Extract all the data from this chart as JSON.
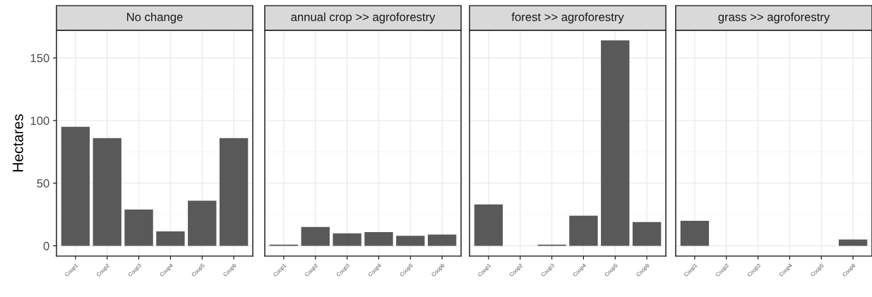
{
  "chart_data": [
    {
      "type": "bar",
      "title": "No change",
      "ylabel": "Hectares",
      "categories": [
        "Coop1",
        "Coop2",
        "Coop3",
        "Coop4",
        "Coop5",
        "Coop6"
      ],
      "values": [
        95,
        86,
        29,
        11.5,
        36,
        86
      ],
      "color": "#595959",
      "ylim": [
        -8.2,
        172
      ],
      "yticks": [
        0,
        50,
        100,
        150
      ],
      "grid": true
    },
    {
      "type": "bar",
      "title": "annual crop >> agroforestry",
      "categories": [
        "Coop1",
        "Coop2",
        "Coop3",
        "Coop4",
        "Coop5",
        "Coop6"
      ],
      "values": [
        1,
        15,
        10,
        11,
        8,
        9
      ],
      "color": "#595959",
      "ylim": [
        -8.2,
        172
      ],
      "yticks": [
        0,
        50,
        100,
        150
      ],
      "grid": true,
      "tick_labels": "x"
    },
    {
      "type": "bar",
      "title": "forest >> agroforestry",
      "categories": [
        "Coop1",
        "Coop2",
        "Coop3",
        "Coop4",
        "Coop5",
        "Coop6"
      ],
      "values": [
        33,
        null,
        1,
        24,
        164,
        19
      ],
      "color": "#595959",
      "ylim": [
        -8.2,
        172
      ],
      "yticks": [
        0,
        50,
        100,
        150
      ],
      "grid": true,
      "tick_labels": "x"
    },
    {
      "type": "bar",
      "title": "grass >> agroforestry",
      "categories": [
        "Coop1",
        "Coop2",
        "Coop3",
        "Coop4",
        "Coop5",
        "Coop6"
      ],
      "values": [
        20,
        null,
        null,
        null,
        null,
        5
      ],
      "color": "#595959",
      "ylim": [
        -8.2,
        172
      ],
      "yticks": [
        0,
        50,
        100,
        150
      ],
      "grid": true,
      "tick_labels": "x"
    }
  ]
}
